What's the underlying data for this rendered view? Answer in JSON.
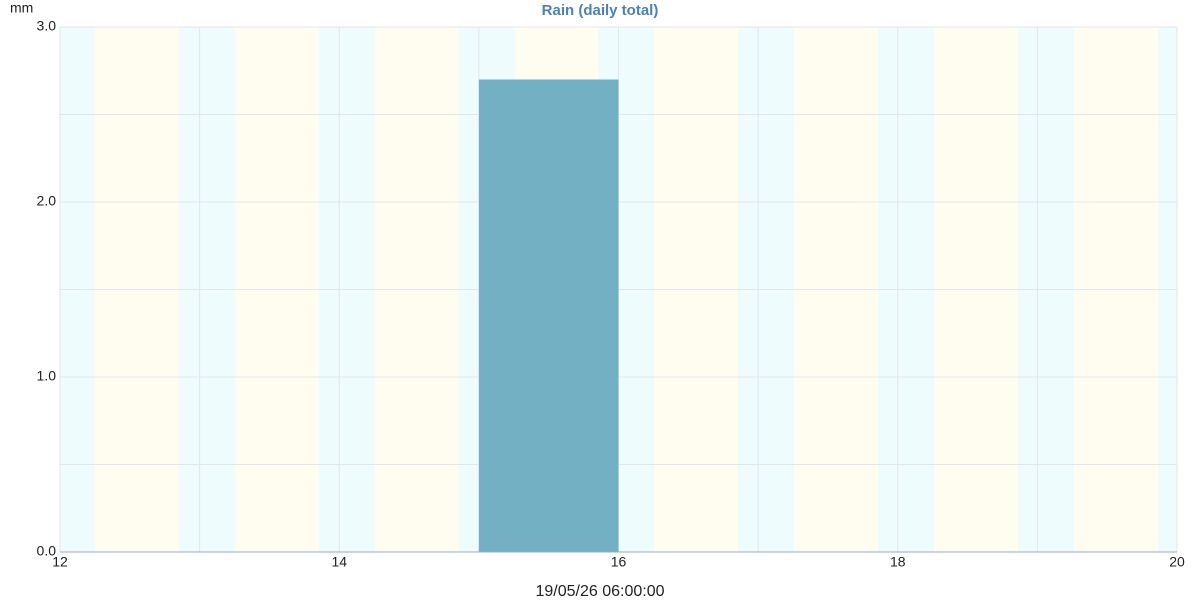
{
  "chart_data": {
    "type": "histogram",
    "title": "Rain (daily total)",
    "y_label": "mm",
    "x_label": "19/05/26 06:00:00",
    "bins": [
      15,
      16
    ],
    "values": [
      2.7
    ],
    "color": "#74b0c4",
    "xlim": [
      12,
      20
    ],
    "xticks": [
      12,
      14,
      16,
      18,
      20
    ],
    "x_minor_ticks": [
      13,
      15,
      17,
      19
    ],
    "ylim": [
      0,
      3
    ],
    "yticks": [
      {
        "value": 0,
        "label": "0.0"
      },
      {
        "value": 1,
        "label": "1.0"
      },
      {
        "value": 2,
        "label": "2.0"
      },
      {
        "value": 3,
        "label": "3.0"
      }
    ],
    "y_minor_ticks": [
      0.5,
      1.5,
      2.5
    ],
    "grid": true
  }
}
